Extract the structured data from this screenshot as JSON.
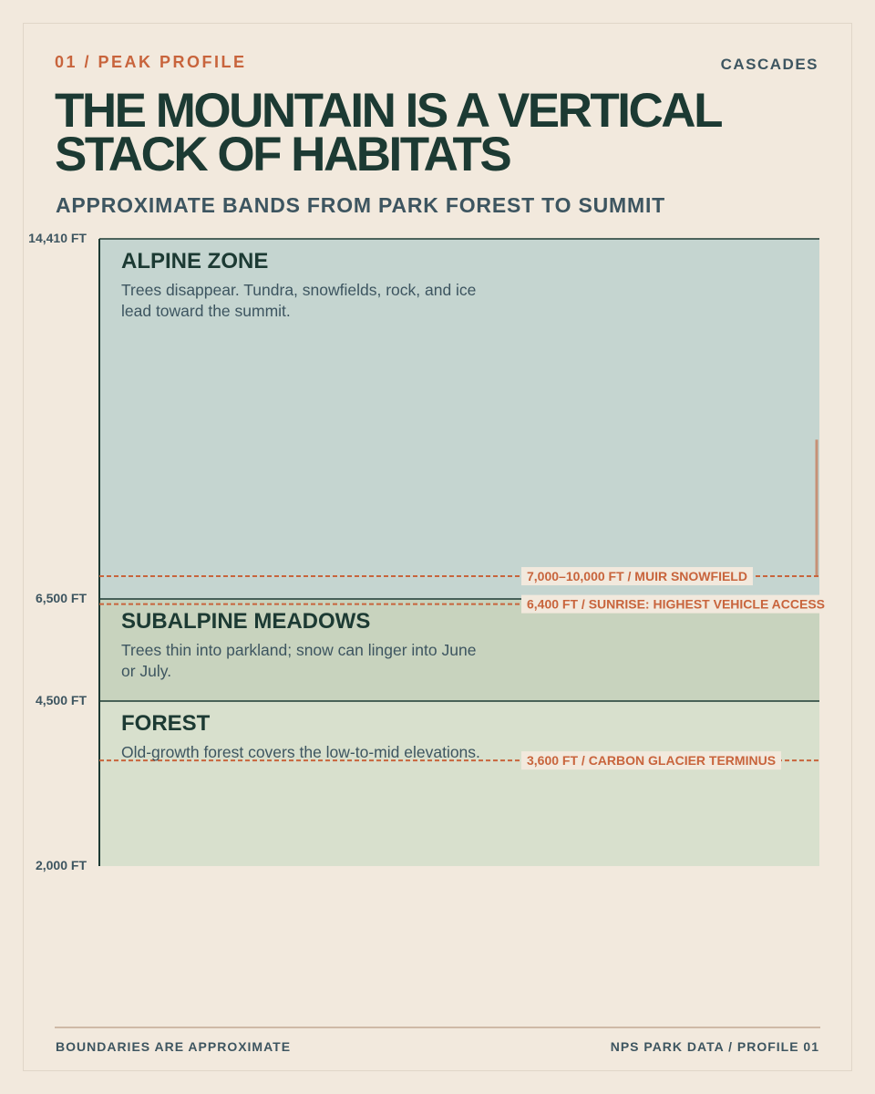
{
  "chart_data": {
    "type": "elevation-bands",
    "kicker": "01 / PEAK PROFILE",
    "region": "CASCADES",
    "title": "THE MOUNTAIN IS A VERTICAL STACK OF HABITATS",
    "subtitle": "APPROXIMATE BANDS FROM PARK FOREST TO SUMMIT",
    "ylim": [
      2000,
      14410
    ],
    "yticks": [
      {
        "value": 14410,
        "label": "14,410 FT"
      },
      {
        "value": 6500,
        "label": "6,500 FT"
      },
      {
        "value": 4500,
        "label": "4,500 FT"
      },
      {
        "value": 2000,
        "label": "2,000 FT"
      }
    ],
    "bands": [
      {
        "name": "ALPINE ZONE",
        "description": "Trees disappear. Tundra, snowfields, rock, and ice lead toward the summit.",
        "low": 6500,
        "high": 14410,
        "color": "#c5d5d0"
      },
      {
        "name": "SUBALPINE MEADOWS",
        "description": "Trees thin into parkland; snow can linger into June or July.",
        "low": 4500,
        "high": 6500,
        "color": "#c8d3be"
      },
      {
        "name": "FOREST",
        "description": "Old-growth forest covers the low-to-mid elevations.",
        "low": 2000,
        "high": 4500,
        "color": "#d8e0cd"
      }
    ],
    "annotations": [
      {
        "label": "7,000–10,000 FT / MUIR SNOWFIELD",
        "values": [
          7000,
          10000
        ]
      },
      {
        "label": "6,400 FT / SUNRISE: HIGHEST VEHICLE ACCESS",
        "values": [
          6400
        ]
      },
      {
        "label": "3,600 FT / CARBON GLACIER TERMINUS",
        "values": [
          3600
        ]
      }
    ],
    "annotation_color": "#c8643c",
    "footer_left": "BOUNDARIES ARE APPROXIMATE",
    "footer_right": "NPS PARK DATA / PROFILE 01"
  }
}
